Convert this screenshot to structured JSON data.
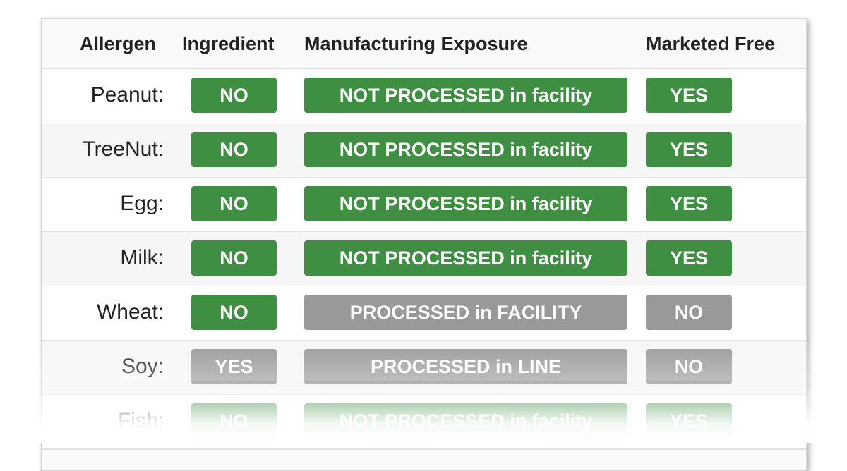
{
  "header": {
    "allergen": "Allergen",
    "ingredient": "Ingredient",
    "manufacturing": "Manufacturing Exposure",
    "marketed_free": "Marketed Free"
  },
  "colors": {
    "green": "#3f8f42",
    "gray": "#999999"
  },
  "rows": [
    {
      "allergen": "Peanut:",
      "ingredient": "NO",
      "ingredient_color": "green",
      "manufacturing": "NOT PROCESSED in facility",
      "manufacturing_color": "green",
      "marketed_free": "YES",
      "marketed_free_color": "green"
    },
    {
      "allergen": "TreeNut:",
      "ingredient": "NO",
      "ingredient_color": "green",
      "manufacturing": "NOT PROCESSED in facility",
      "manufacturing_color": "green",
      "marketed_free": "YES",
      "marketed_free_color": "green"
    },
    {
      "allergen": "Egg:",
      "ingredient": "NO",
      "ingredient_color": "green",
      "manufacturing": "NOT PROCESSED in facility",
      "manufacturing_color": "green",
      "marketed_free": "YES",
      "marketed_free_color": "green"
    },
    {
      "allergen": "Milk:",
      "ingredient": "NO",
      "ingredient_color": "green",
      "manufacturing": "NOT PROCESSED in facility",
      "manufacturing_color": "green",
      "marketed_free": "YES",
      "marketed_free_color": "green"
    },
    {
      "allergen": "Wheat:",
      "ingredient": "NO",
      "ingredient_color": "green",
      "manufacturing": "PROCESSED in FACILITY",
      "manufacturing_color": "gray",
      "marketed_free": "NO",
      "marketed_free_color": "gray"
    },
    {
      "allergen": "Soy:",
      "ingredient": "YES",
      "ingredient_color": "gray",
      "manufacturing": "PROCESSED in LINE",
      "manufacturing_color": "gray",
      "marketed_free": "NO",
      "marketed_free_color": "gray"
    },
    {
      "allergen": "Fish:",
      "ingredient": "NO",
      "ingredient_color": "green",
      "manufacturing": "NOT PROCESSED in facility",
      "manufacturing_color": "green",
      "marketed_free": "YES",
      "marketed_free_color": "green"
    }
  ]
}
